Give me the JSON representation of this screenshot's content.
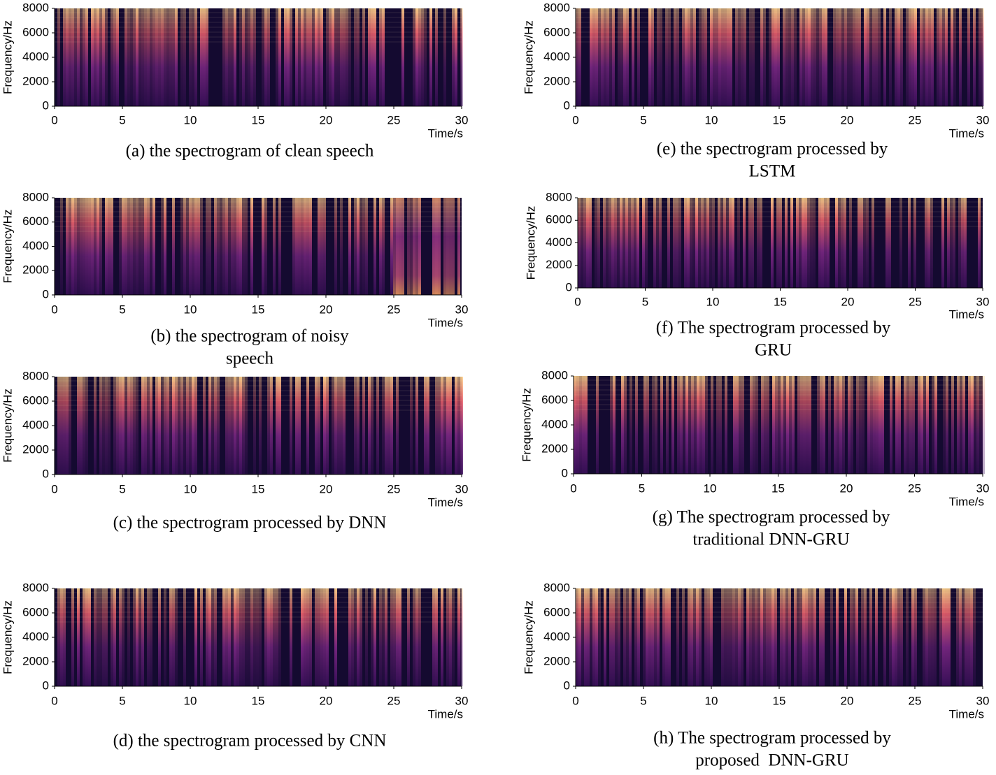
{
  "chart_data": [
    {
      "type": "spectrogram",
      "caption": [
        "(a) the spectrogram of clean speech"
      ],
      "xlabel": "Time/s",
      "ylabel": "Frequency/Hz",
      "xlim": [
        0,
        30
      ],
      "ylim": [
        0,
        8000
      ],
      "xticks": [
        0,
        5,
        10,
        15,
        20,
        25,
        30
      ],
      "yticks": [
        0,
        2000,
        4000,
        6000,
        8000
      ]
    },
    {
      "type": "spectrogram",
      "caption": [
        "(b) the spectrogram of noisy",
        "speech"
      ],
      "xlabel": "Time/s",
      "ylabel": "Frequency/Hz",
      "xlim": [
        0,
        30
      ],
      "ylim": [
        0,
        8000
      ],
      "xticks": [
        0,
        5,
        10,
        15,
        20,
        25,
        30
      ],
      "yticks": [
        0,
        2000,
        4000,
        6000,
        8000
      ]
    },
    {
      "type": "spectrogram",
      "caption": [
        "(c) the spectrogram processed by DNN"
      ],
      "xlabel": "Time/s",
      "ylabel": "Frequency/Hz",
      "xlim": [
        0,
        30
      ],
      "ylim": [
        0,
        8000
      ],
      "xticks": [
        0,
        5,
        10,
        15,
        20,
        25,
        30
      ],
      "yticks": [
        0,
        2000,
        4000,
        6000,
        8000
      ]
    },
    {
      "type": "spectrogram",
      "caption": [
        "(d) the spectrogram processed by CNN"
      ],
      "xlabel": "Time/s",
      "ylabel": "Frequency/Hz",
      "xlim": [
        0,
        30
      ],
      "ylim": [
        0,
        8000
      ],
      "xticks": [
        0,
        5,
        10,
        15,
        20,
        25,
        30
      ],
      "yticks": [
        0,
        2000,
        4000,
        6000,
        8000
      ]
    },
    {
      "type": "spectrogram",
      "caption": [
        "(e) the spectrogram processed by",
        "LSTM"
      ],
      "xlabel": "Time/s",
      "ylabel": "Frequency/Hz",
      "xlim": [
        0,
        30
      ],
      "ylim": [
        0,
        8000
      ],
      "xticks": [
        0,
        5,
        10,
        15,
        20,
        25,
        30
      ],
      "yticks": [
        0,
        2000,
        4000,
        6000,
        8000
      ]
    },
    {
      "type": "spectrogram",
      "caption": [
        "(f) The spectrogram processed by",
        "GRU"
      ],
      "xlabel": "Time/s",
      "ylabel": "Frequency/Hz",
      "xlim": [
        0,
        30
      ],
      "ylim": [
        0,
        8000
      ],
      "xticks": [
        0,
        5,
        10,
        15,
        20,
        25,
        30
      ],
      "yticks": [
        0,
        2000,
        4000,
        6000,
        8000
      ]
    },
    {
      "type": "spectrogram",
      "caption": [
        "(g) The spectrogram processed by",
        "traditional DNN-GRU"
      ],
      "xlabel": "Time/s",
      "ylabel": "Frequency/Hz",
      "xlim": [
        0,
        30
      ],
      "ylim": [
        0,
        8000
      ],
      "xticks": [
        0,
        5,
        10,
        15,
        20,
        25,
        30
      ],
      "yticks": [
        0,
        2000,
        4000,
        6000,
        8000
      ]
    },
    {
      "type": "spectrogram",
      "caption": [
        "(h) The spectrogram processed by",
        "proposed  DNN-GRU"
      ],
      "xlabel": "Time/s",
      "ylabel": "Frequency/Hz",
      "xlim": [
        0,
        30
      ],
      "ylim": [
        0,
        8000
      ],
      "xticks": [
        0,
        5,
        10,
        15,
        20,
        25,
        30
      ],
      "yticks": [
        0,
        2000,
        4000,
        6000,
        8000
      ]
    }
  ]
}
